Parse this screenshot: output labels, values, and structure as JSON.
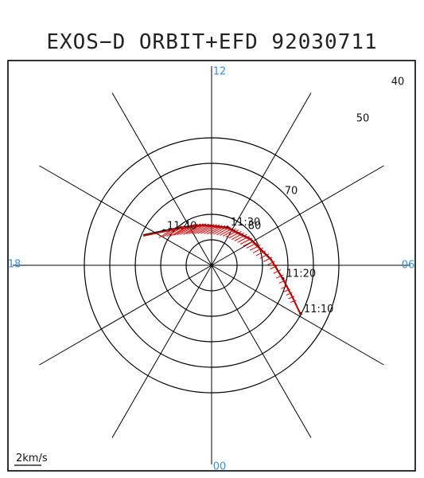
{
  "title": "EXOS−D ORBIT+EFD 92030711",
  "chart_data": {
    "type": "polar",
    "mlt_labels": [
      {
        "label": "12",
        "angle_deg": 90
      },
      {
        "label": "06",
        "angle_deg": 0
      },
      {
        "label": "00",
        "angle_deg": 270
      },
      {
        "label": "18",
        "angle_deg": 180
      }
    ],
    "radial_labels": [
      {
        "label": "40",
        "lat": 40
      },
      {
        "label": "50",
        "lat": 50
      },
      {
        "label": "70",
        "lat": 70
      },
      {
        "label": "80",
        "lat": 80
      }
    ],
    "lat_circles": [
      80,
      70,
      60,
      50,
      40
    ],
    "spoke_interval_hours": 2,
    "scale_label": "2km/s",
    "orbit": {
      "color": "#000000",
      "points": [
        {
          "mlt": 4.1,
          "lat": 50.2
        },
        {
          "mlt": 4.6,
          "lat": 56.0
        },
        {
          "mlt": 5.3,
          "lat": 61.5
        },
        {
          "mlt": 6.4,
          "lat": 66.5
        },
        {
          "mlt": 8.3,
          "lat": 71.5
        },
        {
          "mlt": 10.5,
          "lat": 73.8
        },
        {
          "mlt": 12.8,
          "lat": 73.7
        },
        {
          "mlt": 14.5,
          "lat": 71.0
        },
        {
          "mlt": 15.6,
          "lat": 66.8
        },
        {
          "mlt": 16.4,
          "lat": 60.6
        }
      ]
    },
    "time_marks": [
      {
        "label": "11:10",
        "mlt": 4.1,
        "lat": 50.2
      },
      {
        "label": "11:20",
        "mlt": 5.3,
        "lat": 61.5
      },
      {
        "label": "11:30",
        "mlt": 10.5,
        "lat": 73.8
      },
      {
        "label": "11:40",
        "mlt": 15.6,
        "lat": 66.8
      }
    ],
    "efd_vectors": {
      "color": "#e00000",
      "segments": [
        {
          "mlt": 4.5,
          "lat": 54.0,
          "vx": -0.6,
          "vy": 0.2
        },
        {
          "mlt": 5.0,
          "lat": 59.0,
          "vx": -0.7,
          "vy": 0.3
        },
        {
          "mlt": 6.0,
          "lat": 64.0,
          "vx": -0.8,
          "vy": 0.4
        },
        {
          "mlt": 7.0,
          "lat": 68.0,
          "vx": -1.0,
          "vy": 0.5
        },
        {
          "mlt": 8.0,
          "lat": 70.5,
          "vx": -1.2,
          "vy": 0.6
        },
        {
          "mlt": 9.0,
          "lat": 72.0,
          "vx": -1.3,
          "vy": 0.7
        },
        {
          "mlt": 10.0,
          "lat": 73.0,
          "vx": -1.4,
          "vy": 0.8
        },
        {
          "mlt": 11.0,
          "lat": 73.8,
          "vx": -1.6,
          "vy": 0.9
        },
        {
          "mlt": 12.0,
          "lat": 73.9,
          "vx": -1.8,
          "vy": 1.0
        },
        {
          "mlt": 13.0,
          "lat": 73.2,
          "vx": -1.8,
          "vy": 1.1
        },
        {
          "mlt": 14.0,
          "lat": 72.0,
          "vx": -1.9,
          "vy": 1.1
        },
        {
          "mlt": 15.0,
          "lat": 69.0,
          "vx": -2.0,
          "vy": 1.2
        }
      ]
    }
  }
}
